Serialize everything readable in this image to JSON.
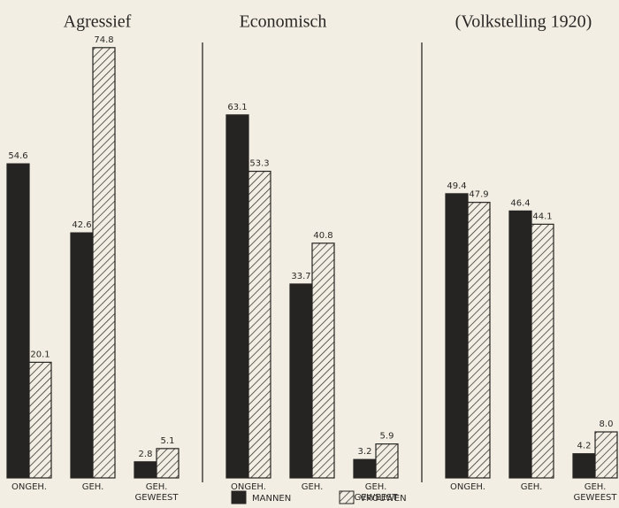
{
  "chart_data": [
    {
      "type": "bar",
      "title": "Agressief",
      "categories": [
        "ONGEH.",
        "GEH.",
        [
          "GEH.",
          "GEWEEST"
        ]
      ],
      "ylim": [
        0,
        80
      ],
      "series": [
        {
          "name": "MANNEN",
          "color": "#262422",
          "values": [
            54.6,
            42.6,
            2.8
          ],
          "value_labels": [
            "54.6",
            "42.6",
            "2.8"
          ]
        },
        {
          "name": "VROUWEN",
          "color": "#262422",
          "pattern": "hatch",
          "values": [
            20.1,
            74.8,
            5.1
          ],
          "value_labels": [
            "20.1",
            "74.8",
            "5.1"
          ]
        }
      ]
    },
    {
      "type": "bar",
      "title": "Economisch",
      "categories": [
        "ONGEH.",
        "GEH.",
        [
          "GEH.",
          "GEWEEST"
        ]
      ],
      "ylim": [
        0,
        80
      ],
      "series": [
        {
          "color": "#262422",
          "values": [
            63.1,
            33.7,
            3.2
          ],
          "value_labels": [
            "63.1",
            "33.7",
            "3.2"
          ]
        },
        {
          "color": "#262422",
          "pattern": "hatch",
          "values": [
            53.3,
            40.8,
            5.9
          ],
          "value_labels": [
            "53.3",
            "40.8",
            "5.9"
          ]
        }
      ]
    },
    {
      "type": "bar",
      "title": "(Volkstelling 1920)",
      "categories": [
        "ONGEH.",
        "GEH.",
        [
          "GEH.",
          "GEWEEST"
        ]
      ],
      "ylim": [
        0,
        80
      ],
      "series": [
        {
          "color": "#262422",
          "values": [
            49.4,
            46.4,
            4.2
          ],
          "value_labels": [
            "49.4",
            "46.4",
            "4.2"
          ]
        },
        {
          "color": "#262422",
          "pattern": "hatch",
          "values": [
            47.9,
            44.1,
            8.0
          ],
          "value_labels": [
            "47.9",
            "44.1",
            "8.0"
          ]
        }
      ]
    }
  ]
}
